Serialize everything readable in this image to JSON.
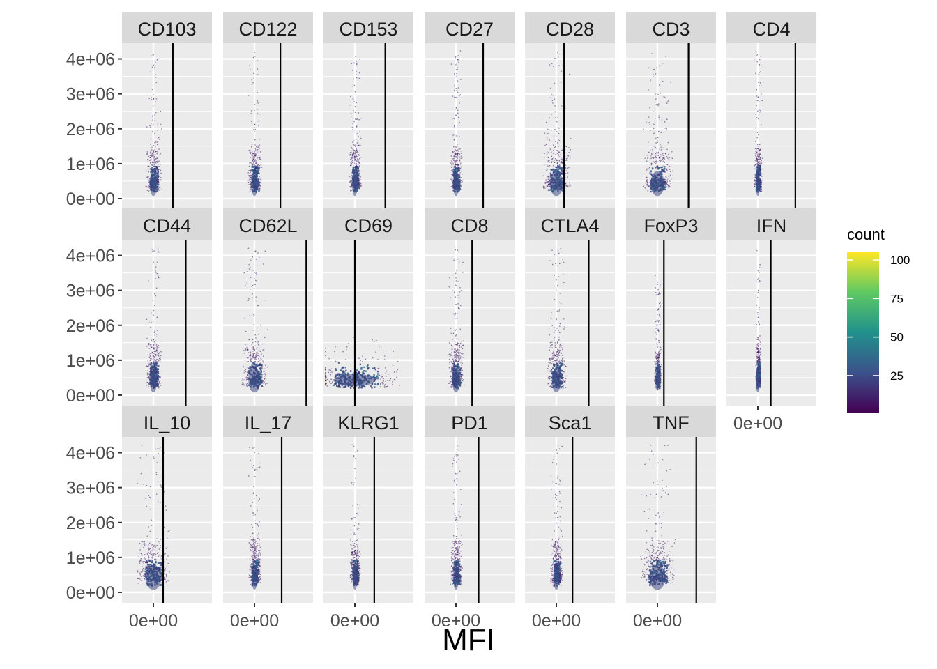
{
  "chart_data": {
    "type": "heatmap",
    "xlabel": "MFI",
    "ylabel": "",
    "ylim": [
      -300000,
      4450000
    ],
    "y_ticks": [
      0,
      1000000,
      2000000,
      3000000,
      4000000
    ],
    "y_tick_labels": [
      "0e+00",
      "1e+06",
      "2e+06",
      "3e+06",
      "4e+06"
    ],
    "x_tick_label": "0e+00",
    "grid": true,
    "legend": {
      "title": "count",
      "position": "right",
      "scale": "viridis",
      "range": [
        1,
        105
      ],
      "ticks": [
        25,
        50,
        75,
        100
      ],
      "tick_labels": [
        "25",
        "50",
        "75",
        "100"
      ]
    },
    "panels": [
      {
        "name": "CD103",
        "threshold": 0.3,
        "spread": 0.09,
        "height": 1.0
      },
      {
        "name": "CD122",
        "threshold": 0.4,
        "spread": 0.08,
        "height": 1.0
      },
      {
        "name": "CD153",
        "threshold": 0.47,
        "spread": 0.07,
        "height": 1.0
      },
      {
        "name": "CD27",
        "threshold": 0.42,
        "spread": 0.07,
        "height": 1.0
      },
      {
        "name": "CD28",
        "threshold": 0.12,
        "spread": 0.16,
        "height": 1.0
      },
      {
        "name": "CD3",
        "threshold": 0.48,
        "spread": 0.17,
        "height": 1.0
      },
      {
        "name": "CD4",
        "threshold": 0.58,
        "spread": 0.05,
        "height": 1.0
      },
      {
        "name": "CD44",
        "threshold": 0.5,
        "spread": 0.09,
        "height": 1.0
      },
      {
        "name": "CD62L",
        "threshold": 0.8,
        "spread": 0.15,
        "height": 1.0
      },
      {
        "name": "CD69",
        "threshold": 0.0,
        "spread": 0.5,
        "height": 0.35
      },
      {
        "name": "CD8",
        "threshold": 0.25,
        "spread": 0.09,
        "height": 1.0
      },
      {
        "name": "CTLA4",
        "threshold": 0.5,
        "spread": 0.11,
        "height": 1.0
      },
      {
        "name": "FoxP3",
        "threshold": 0.1,
        "spread": 0.04,
        "height": 0.8
      },
      {
        "name": "IFN",
        "threshold": 0.2,
        "spread": 0.03,
        "height": 1.0
      },
      {
        "name": "IL_10",
        "threshold": 0.15,
        "spread": 0.2,
        "height": 1.0
      },
      {
        "name": "IL_17",
        "threshold": 0.42,
        "spread": 0.07,
        "height": 1.0
      },
      {
        "name": "KLRG1",
        "threshold": 0.3,
        "spread": 0.06,
        "height": 1.0
      },
      {
        "name": "PD1",
        "threshold": 0.35,
        "spread": 0.07,
        "height": 1.0
      },
      {
        "name": "Sca1",
        "threshold": 0.25,
        "spread": 0.07,
        "height": 1.0
      },
      {
        "name": "TNF",
        "threshold": 0.6,
        "spread": 0.2,
        "height": 1.0
      }
    ]
  }
}
